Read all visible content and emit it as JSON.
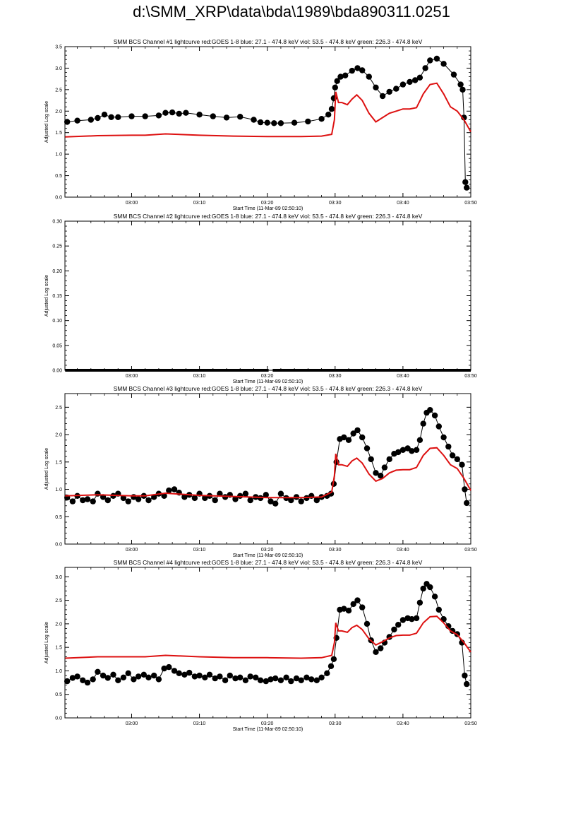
{
  "page_title": "d:\\SMM_XRP\\data\\bda\\1989\\bda890311.0251",
  "colors": {
    "ours": "#000000",
    "goes": "#dd1111",
    "axis": "#000000"
  },
  "shared": {
    "xlabel": "Start Time (11-Mar-89 02:50:10)",
    "ylabel": "Adjusted Log scale",
    "x_range_min": [
      50.17,
      110.0
    ],
    "x_ticks_min": [
      60,
      70,
      80,
      90,
      100,
      110
    ],
    "x_tick_labels": [
      "03:00",
      "03:10",
      "03:20",
      "03:30",
      "03:40",
      "03:50"
    ]
  },
  "chart_data": [
    {
      "type": "line",
      "title": "SMM BCS Channel #1 lightcurve  red:GOES 1-8  blue: 27.1 - 474.8 keV  viol: 53.5 - 474.8 keV  green: 226.3 - 474.8 keV",
      "ylim": [
        0.0,
        3.5
      ],
      "y_ticks": [
        "0.0",
        "0.5",
        "1.0",
        "1.5",
        "2.0",
        "2.5",
        "3.0",
        "3.5"
      ],
      "series": [
        {
          "role": "bcs",
          "style": "dots",
          "x": [
            50.5,
            52,
            54,
            55,
            56,
            57,
            58,
            60,
            62,
            64,
            65,
            66,
            67,
            68,
            70,
            72,
            74,
            76,
            78,
            79,
            80,
            81,
            82,
            84,
            86,
            88,
            89,
            89.5,
            89.8,
            90,
            90.3,
            90.8,
            91.5,
            92.5,
            93.3,
            94,
            95,
            96,
            97,
            98,
            99,
            100,
            101,
            101.8,
            102.5,
            103.3,
            104,
            105,
            106,
            107.5,
            108.5,
            108.8,
            109,
            109.2,
            109.4
          ],
          "y": [
            1.75,
            1.78,
            1.8,
            1.84,
            1.92,
            1.86,
            1.86,
            1.88,
            1.88,
            1.9,
            1.96,
            1.97,
            1.94,
            1.96,
            1.92,
            1.88,
            1.85,
            1.87,
            1.8,
            1.74,
            1.73,
            1.72,
            1.72,
            1.73,
            1.76,
            1.82,
            1.92,
            2.05,
            2.3,
            2.55,
            2.7,
            2.8,
            2.83,
            2.94,
            3.0,
            2.95,
            2.8,
            2.55,
            2.35,
            2.45,
            2.52,
            2.62,
            2.68,
            2.72,
            2.78,
            3.0,
            3.18,
            3.22,
            3.1,
            2.85,
            2.62,
            2.5,
            1.85,
            0.35,
            0.22
          ]
        },
        {
          "role": "goes",
          "style": "line",
          "x": [
            50.2,
            55,
            60,
            62,
            65,
            70,
            75,
            80,
            85,
            88,
            89.5,
            89.9,
            90.1,
            90.5,
            91,
            91.8,
            92.5,
            93.2,
            94,
            95,
            96,
            97,
            98,
            99,
            100,
            101,
            102,
            103,
            104,
            105,
            106,
            107,
            108,
            109,
            110
          ],
          "y": [
            1.4,
            1.43,
            1.44,
            1.44,
            1.47,
            1.44,
            1.42,
            1.41,
            1.41,
            1.42,
            1.46,
            1.8,
            2.45,
            2.2,
            2.2,
            2.15,
            2.28,
            2.38,
            2.25,
            1.95,
            1.75,
            1.85,
            1.95,
            2.0,
            2.05,
            2.05,
            2.08,
            2.4,
            2.62,
            2.65,
            2.4,
            2.1,
            2.0,
            1.8,
            1.52
          ]
        }
      ]
    },
    {
      "type": "line",
      "title": "SMM BCS Channel #2 lightcurve  red:GOES 1-8  blue: 27.1 - 474.8 keV  viol: 53.5 - 474.8 keV  green: 226.3 - 474.8 keV",
      "ylim": [
        0.0,
        0.3
      ],
      "y_ticks": [
        "0.00",
        "0.05",
        "0.10",
        "0.15",
        "0.20",
        "0.25",
        "0.30"
      ],
      "series": [
        {
          "role": "bcs",
          "style": "flat",
          "x": [
            50.2,
            80.2,
            80.8,
            110.0
          ],
          "y": [
            0.0,
            0.0,
            0.0,
            0.0
          ]
        }
      ]
    },
    {
      "type": "line",
      "title": "SMM BCS Channel #3 lightcurve  red:GOES 1-8  blue: 27.1 - 474.8 keV  viol: 53.5 - 474.8 keV  green: 226.3 - 474.8 keV",
      "ylim": [
        0.0,
        2.75
      ],
      "y_ticks": [
        "0.0",
        "0.5",
        "1.0",
        "1.5",
        "2.0",
        "2.5"
      ],
      "series": [
        {
          "role": "bcs",
          "style": "dots",
          "x": [
            50.5,
            51.3,
            52,
            52.8,
            53.5,
            54.3,
            55,
            55.8,
            56.5,
            57.3,
            58,
            58.8,
            59.5,
            60.3,
            61,
            61.8,
            62.5,
            63.3,
            64,
            64.8,
            65.5,
            66.3,
            67,
            67.8,
            68.5,
            69.3,
            70,
            70.8,
            71.5,
            72.3,
            73,
            73.8,
            74.5,
            75.3,
            76,
            76.8,
            77.5,
            78.3,
            79,
            79.8,
            80.5,
            81.2,
            82,
            82.8,
            83.5,
            84.3,
            85,
            85.8,
            86.5,
            87.3,
            88,
            88.8,
            89.4,
            89.8,
            90.2,
            90.7,
            91.3,
            92,
            92.7,
            93.3,
            94,
            94.7,
            95.3,
            96,
            96.7,
            97.3,
            98,
            98.7,
            99.3,
            100,
            100.7,
            101.3,
            102,
            102.5,
            103,
            103.5,
            104,
            104.7,
            105.3,
            106,
            106.7,
            107.3,
            108,
            108.7,
            109.1,
            109.4
          ],
          "y": [
            0.85,
            0.78,
            0.88,
            0.8,
            0.82,
            0.78,
            0.92,
            0.86,
            0.8,
            0.88,
            0.92,
            0.84,
            0.78,
            0.86,
            0.82,
            0.88,
            0.8,
            0.86,
            0.92,
            0.88,
            0.98,
            1.0,
            0.94,
            0.86,
            0.9,
            0.84,
            0.92,
            0.84,
            0.88,
            0.8,
            0.92,
            0.86,
            0.9,
            0.82,
            0.88,
            0.92,
            0.8,
            0.86,
            0.84,
            0.9,
            0.78,
            0.74,
            0.92,
            0.84,
            0.8,
            0.86,
            0.78,
            0.84,
            0.88,
            0.8,
            0.86,
            0.88,
            0.92,
            1.1,
            1.5,
            1.92,
            1.95,
            1.9,
            2.02,
            2.08,
            1.95,
            1.75,
            1.55,
            1.3,
            1.25,
            1.4,
            1.55,
            1.65,
            1.68,
            1.72,
            1.75,
            1.7,
            1.72,
            1.9,
            2.2,
            2.4,
            2.45,
            2.35,
            2.15,
            1.95,
            1.78,
            1.62,
            1.55,
            1.45,
            1.0,
            0.75
          ]
        },
        {
          "role": "goes",
          "style": "line",
          "x": [
            50.2,
            55,
            60,
            62,
            65,
            70,
            75,
            80,
            85,
            88,
            89.5,
            89.9,
            90.1,
            90.5,
            91,
            91.8,
            92.5,
            93.2,
            94,
            95,
            96,
            97,
            98,
            99,
            100,
            101,
            102,
            103,
            104,
            105,
            106,
            107,
            108,
            109,
            110
          ],
          "y": [
            0.88,
            0.9,
            0.88,
            0.88,
            0.93,
            0.89,
            0.87,
            0.85,
            0.85,
            0.86,
            0.95,
            1.25,
            1.65,
            1.45,
            1.45,
            1.42,
            1.52,
            1.57,
            1.48,
            1.28,
            1.15,
            1.2,
            1.3,
            1.35,
            1.36,
            1.36,
            1.4,
            1.62,
            1.75,
            1.76,
            1.62,
            1.45,
            1.38,
            1.2,
            0.98
          ]
        }
      ]
    },
    {
      "type": "line",
      "title": "SMM BCS Channel #4 lightcurve  red:GOES 1-8  blue: 27.1 - 474.8 keV  viol: 53.5 - 474.8 keV  green: 226.3 - 474.8 keV",
      "ylim": [
        0.0,
        3.2
      ],
      "y_ticks": [
        "0.0",
        "0.5",
        "1.0",
        "1.5",
        "2.0",
        "2.5",
        "3.0"
      ],
      "series": [
        {
          "role": "bcs",
          "style": "dots",
          "x": [
            50.5,
            51.3,
            52,
            52.8,
            53.5,
            54.3,
            55,
            55.8,
            56.5,
            57.3,
            58,
            58.8,
            59.5,
            60.3,
            61,
            61.8,
            62.5,
            63.3,
            64,
            64.8,
            65.5,
            66.3,
            67,
            67.8,
            68.5,
            69.3,
            70,
            70.8,
            71.5,
            72.3,
            73,
            73.8,
            74.5,
            75.3,
            76,
            76.8,
            77.5,
            78.3,
            79,
            79.8,
            80.5,
            81.2,
            82,
            82.8,
            83.5,
            84.3,
            85,
            85.8,
            86.5,
            87.3,
            88,
            88.8,
            89.4,
            89.8,
            90.2,
            90.7,
            91.3,
            92,
            92.7,
            93.3,
            94,
            94.7,
            95.3,
            96,
            96.7,
            97.3,
            98,
            98.7,
            99.3,
            100,
            100.7,
            101.3,
            102,
            102.5,
            103,
            103.5,
            104,
            104.7,
            105.3,
            106,
            106.7,
            107.3,
            108,
            108.7,
            109.1,
            109.4
          ],
          "y": [
            0.78,
            0.85,
            0.88,
            0.8,
            0.75,
            0.82,
            0.98,
            0.9,
            0.85,
            0.92,
            0.8,
            0.86,
            0.95,
            0.82,
            0.88,
            0.92,
            0.86,
            0.9,
            0.82,
            1.05,
            1.08,
            1.0,
            0.95,
            0.92,
            0.96,
            0.88,
            0.9,
            0.86,
            0.92,
            0.84,
            0.88,
            0.8,
            0.9,
            0.84,
            0.86,
            0.8,
            0.88,
            0.86,
            0.8,
            0.78,
            0.82,
            0.84,
            0.8,
            0.86,
            0.78,
            0.84,
            0.8,
            0.86,
            0.82,
            0.8,
            0.86,
            0.95,
            1.1,
            1.25,
            1.7,
            2.3,
            2.32,
            2.28,
            2.42,
            2.5,
            2.35,
            2.0,
            1.65,
            1.4,
            1.48,
            1.6,
            1.72,
            1.88,
            1.98,
            2.08,
            2.12,
            2.1,
            2.12,
            2.45,
            2.75,
            2.85,
            2.78,
            2.58,
            2.3,
            2.1,
            1.95,
            1.85,
            1.78,
            1.6,
            0.9,
            0.72
          ]
        },
        {
          "role": "goes",
          "style": "line",
          "x": [
            50.2,
            55,
            60,
            62,
            65,
            70,
            75,
            80,
            85,
            88,
            89.5,
            89.9,
            90.1,
            90.5,
            91,
            91.8,
            92.5,
            93.2,
            94,
            95,
            96,
            97,
            98,
            99,
            100,
            101,
            102,
            103,
            104,
            105,
            106,
            107,
            108,
            109,
            110
          ],
          "y": [
            1.27,
            1.3,
            1.3,
            1.3,
            1.33,
            1.3,
            1.28,
            1.28,
            1.27,
            1.28,
            1.33,
            1.6,
            2.02,
            1.85,
            1.85,
            1.82,
            1.92,
            1.97,
            1.88,
            1.68,
            1.55,
            1.62,
            1.7,
            1.75,
            1.76,
            1.76,
            1.8,
            2.02,
            2.15,
            2.16,
            2.02,
            1.85,
            1.77,
            1.6,
            1.4
          ]
        }
      ]
    }
  ]
}
